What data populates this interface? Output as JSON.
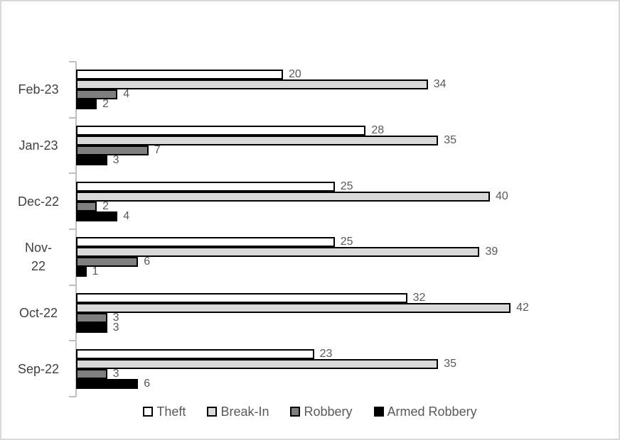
{
  "chart_data": {
    "type": "bar",
    "orientation": "horizontal",
    "title": "",
    "xlabel": "",
    "ylabel": "",
    "grid": false,
    "legend_position": "bottom",
    "data_labels": true,
    "value_axis_visible": false,
    "xlim_estimate": [
      0,
      45
    ],
    "categories": [
      "Feb-23",
      "Jan-23",
      "Dec-22",
      "Nov-22",
      "Oct-22",
      "Sep-22"
    ],
    "category_display_labels": [
      "Feb-23",
      "Jan-23",
      "Dec-22",
      "Nov-\n22",
      "Oct-22",
      "Sep-22"
    ],
    "series": [
      {
        "name": "Theft",
        "color": "#FFFFFF",
        "values": [
          20,
          28,
          25,
          25,
          32,
          23
        ]
      },
      {
        "name": "Break-In",
        "color": "#D9D9D9",
        "values": [
          34,
          35,
          40,
          39,
          42,
          35
        ]
      },
      {
        "name": "Robbery",
        "color": "#7F7F7F",
        "values": [
          4,
          7,
          2,
          6,
          3,
          3
        ]
      },
      {
        "name": "Armed Robbery",
        "color": "#000000",
        "values": [
          2,
          3,
          4,
          1,
          3,
          6
        ]
      }
    ],
    "styles": {
      "bar_border_color": "#000000",
      "data_label_color": "#595959",
      "category_label_color": "#404040",
      "legend_text_color": "#595959",
      "axis_line_color": "#BFBFBF",
      "frame_border_color": "#D9D9D9"
    }
  }
}
